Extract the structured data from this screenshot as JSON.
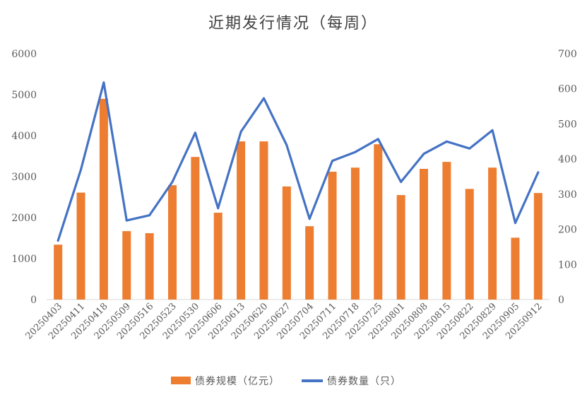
{
  "chart_data": {
    "type": "bar",
    "title": "近期发行情况（每周）",
    "categories": [
      "20250403",
      "20250411",
      "20250418",
      "20250509",
      "20250516",
      "20250523",
      "20250530",
      "20250606",
      "20250613",
      "20250620",
      "20250627",
      "20250704",
      "20250711",
      "20250718",
      "20250725",
      "20250801",
      "20250808",
      "20250815",
      "20250822",
      "20250829",
      "20250905",
      "20250912"
    ],
    "series": [
      {
        "name": "债券规模（亿元）",
        "type": "bar",
        "axis": "left",
        "color": "#ED7D31",
        "values": [
          1340,
          2610,
          4900,
          1670,
          1620,
          2790,
          3480,
          2120,
          3860,
          3860,
          2760,
          1790,
          3120,
          3220,
          3790,
          2550,
          3190,
          3360,
          2700,
          3220,
          1510,
          2600
        ]
      },
      {
        "name": "债券数量（只）",
        "type": "line",
        "axis": "right",
        "color": "#4472C4",
        "values": [
          168,
          370,
          618,
          225,
          240,
          335,
          475,
          260,
          478,
          573,
          440,
          230,
          395,
          420,
          457,
          335,
          415,
          450,
          430,
          482,
          218,
          362
        ]
      }
    ],
    "yleft": {
      "min": 0,
      "max": 6000,
      "ticks": [
        0,
        1000,
        2000,
        3000,
        4000,
        5000,
        6000
      ]
    },
    "yright": {
      "min": 0,
      "max": 700,
      "ticks": [
        0,
        100,
        200,
        300,
        400,
        500,
        600,
        700
      ]
    },
    "legend": "bottom",
    "grid": false
  }
}
